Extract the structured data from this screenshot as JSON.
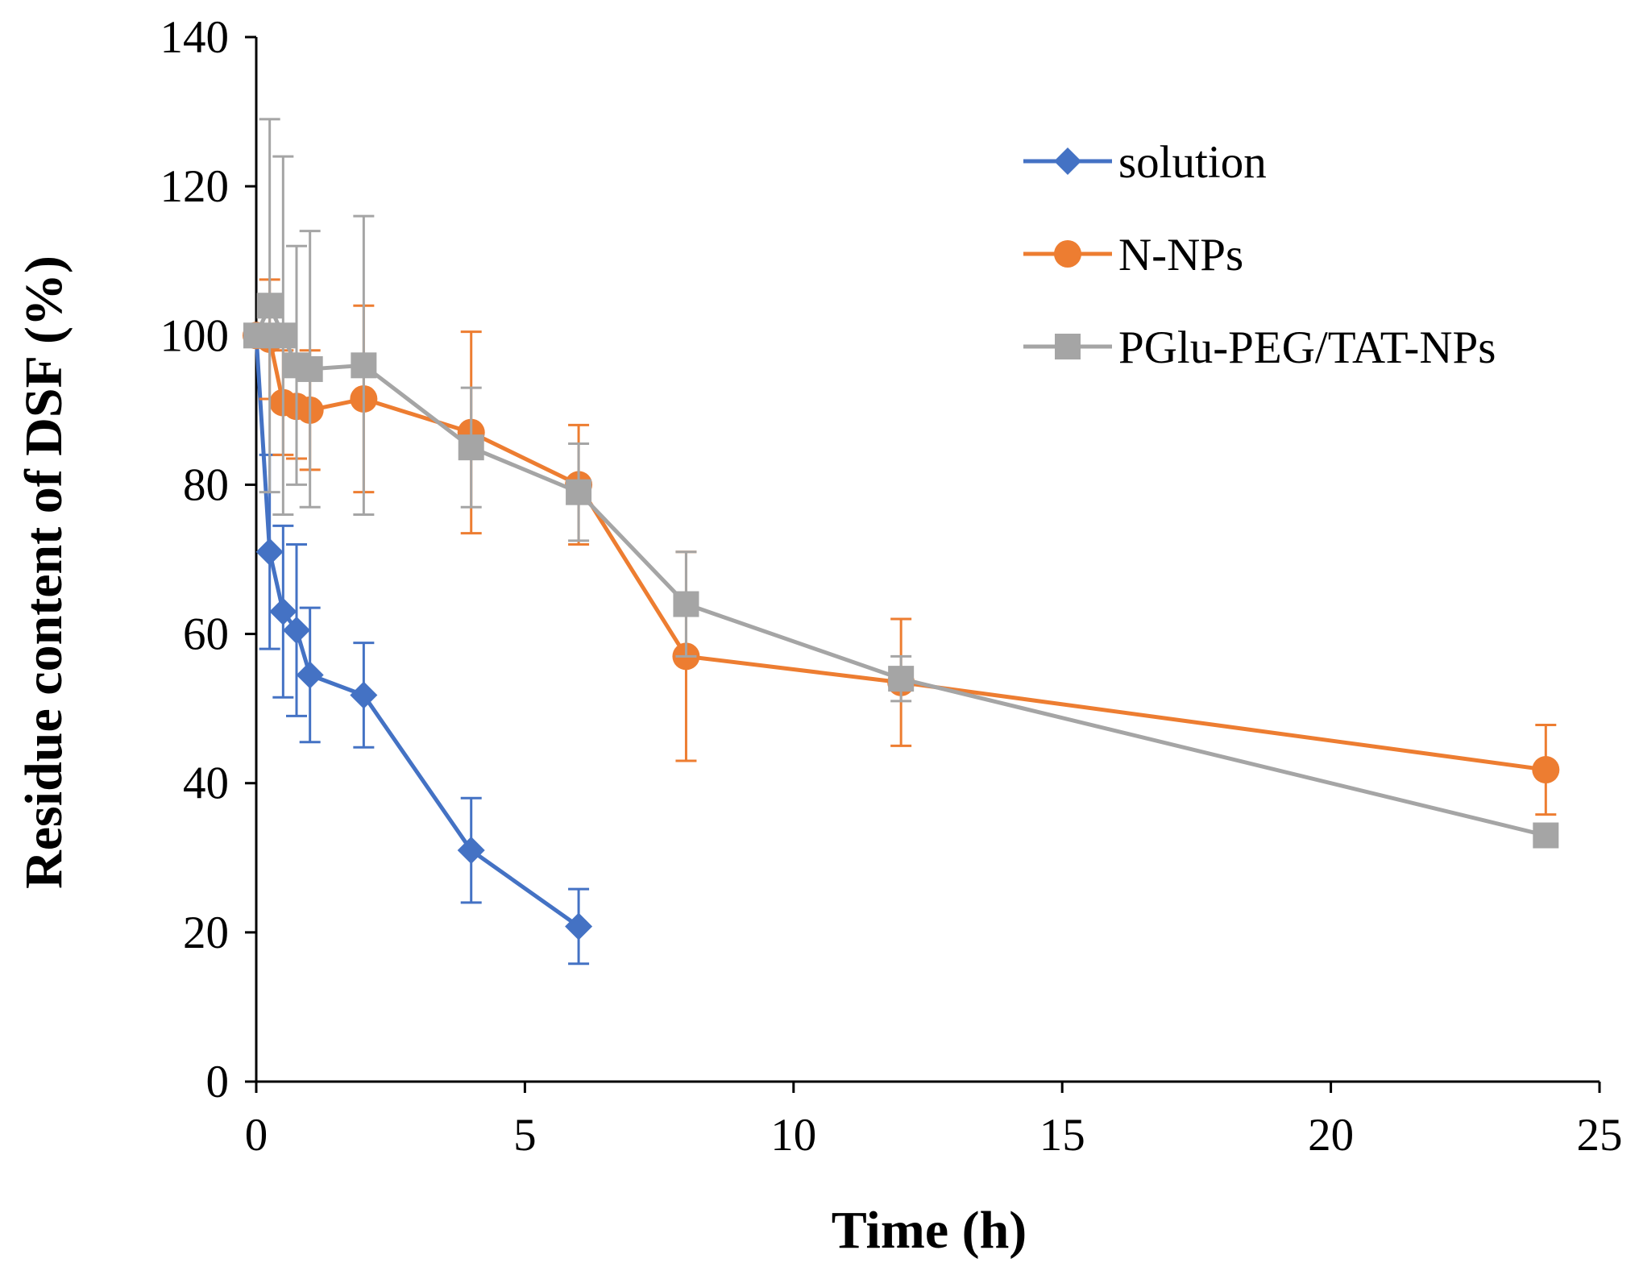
{
  "chart_data": {
    "type": "line",
    "title": "",
    "xlabel": "Time (h)",
    "ylabel": "Residue content of DSF (%)",
    "xlim": [
      0,
      25
    ],
    "ylim": [
      0,
      140
    ],
    "xticks": [
      0,
      5,
      10,
      15,
      20,
      25
    ],
    "yticks": [
      0,
      20,
      40,
      60,
      80,
      100,
      120,
      140
    ],
    "xtick_labels": [
      "0",
      "5",
      "10",
      "15",
      "20",
      "25"
    ],
    "ytick_labels": [
      "0",
      "20",
      "40",
      "60",
      "80",
      "100",
      "120",
      "140"
    ],
    "grid": false,
    "legend_position": "top-right",
    "series": [
      {
        "name": "solution",
        "color": "#4472C4",
        "marker": "diamond",
        "x": [
          0,
          0.25,
          0.5,
          0.75,
          1,
          2,
          4,
          6
        ],
        "y": [
          100,
          71,
          63,
          60.5,
          54.5,
          51.8,
          31,
          20.8
        ],
        "err": [
          0,
          13,
          11.5,
          11.5,
          9,
          7,
          7,
          5
        ]
      },
      {
        "name": "N-NPs",
        "color": "#ED7D31",
        "marker": "circle",
        "x": [
          0,
          0.25,
          0.5,
          0.75,
          1,
          2,
          4,
          6,
          8,
          12,
          24
        ],
        "y": [
          100,
          99.5,
          91,
          90.5,
          90,
          91.5,
          87,
          80,
          57,
          53.5,
          41.8
        ],
        "err": [
          0,
          8,
          7,
          7,
          8,
          12.5,
          13.5,
          8,
          14,
          8.5,
          6
        ]
      },
      {
        "name": "PGlu-PEG/TAT-NPs",
        "color": "#A5A5A5",
        "marker": "square",
        "x": [
          0,
          0.25,
          0.5,
          0.75,
          1,
          2,
          4,
          6,
          8,
          12,
          24
        ],
        "y": [
          100,
          104,
          100,
          96,
          95.5,
          96,
          85,
          79,
          64,
          54,
          33
        ],
        "err": [
          0,
          25,
          24,
          16,
          18.5,
          20,
          8,
          6.5,
          7,
          3,
          0
        ]
      }
    ]
  }
}
